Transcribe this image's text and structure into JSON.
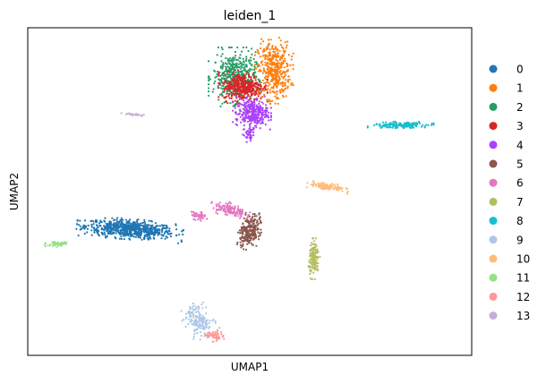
{
  "chart_data": {
    "type": "scatter",
    "title": "leiden_1",
    "xlabel": "UMAP1",
    "ylabel": "UMAP2",
    "xlim": [
      0,
      100
    ],
    "ylim": [
      0,
      100
    ],
    "grid": false,
    "ticks": false,
    "legend_position": "right",
    "series": [
      {
        "name": "0",
        "color": "#1f77b4",
        "clusters": [
          {
            "cx": 23,
            "cy": 38.5,
            "rx": 10,
            "ry": 2.6,
            "n": 700,
            "rot": -6
          }
        ]
      },
      {
        "name": "1",
        "color": "#ff7f0e",
        "clusters": [
          {
            "cx": 55.5,
            "cy": 87,
            "rx": 3.6,
            "ry": 8.5,
            "n": 420,
            "rot": 0
          }
        ]
      },
      {
        "name": "2",
        "color": "#279e68",
        "clusters": [
          {
            "cx": 46.5,
            "cy": 85,
            "rx": 4.8,
            "ry": 7.5,
            "n": 450,
            "rot": 0
          }
        ]
      },
      {
        "name": "3",
        "color": "#d62728",
        "clusters": [
          {
            "cx": 48.5,
            "cy": 82,
            "rx": 4.6,
            "ry": 4.2,
            "n": 380,
            "rot": 0
          }
        ]
      },
      {
        "name": "4",
        "color": "#aa40fc",
        "clusters": [
          {
            "cx": 50.5,
            "cy": 74,
            "rx": 3.6,
            "ry": 4.2,
            "n": 300,
            "rot": 0
          },
          {
            "cx": 49.8,
            "cy": 67.5,
            "rx": 1.2,
            "ry": 2.2,
            "n": 40,
            "rot": 0
          }
        ]
      },
      {
        "name": "5",
        "color": "#8c564b",
        "clusters": [
          {
            "cx": 50,
            "cy": 38,
            "rx": 2.2,
            "ry": 4.8,
            "n": 260,
            "rot": -15
          }
        ]
      },
      {
        "name": "6",
        "color": "#e377c2",
        "clusters": [
          {
            "cx": 45.5,
            "cy": 44.5,
            "rx": 3.8,
            "ry": 1.8,
            "n": 130,
            "rot": -20
          },
          {
            "cx": 38.5,
            "cy": 42.5,
            "rx": 1.6,
            "ry": 1.2,
            "n": 40,
            "rot": 0
          }
        ]
      },
      {
        "name": "7",
        "color": "#b5bd61",
        "clusters": [
          {
            "cx": 64.5,
            "cy": 29.5,
            "rx": 1.1,
            "ry": 5.2,
            "n": 150,
            "rot": 0
          }
        ]
      },
      {
        "name": "8",
        "color": "#17becf",
        "clusters": [
          {
            "cx": 84,
            "cy": 70.3,
            "rx": 6.2,
            "ry": 0.9,
            "n": 170,
            "rot": 2
          }
        ]
      },
      {
        "name": "9",
        "color": "#aec7e8",
        "clusters": [
          {
            "cx": 38.5,
            "cy": 10.5,
            "rx": 2.8,
            "ry": 4.5,
            "n": 170,
            "rot": 25
          }
        ]
      },
      {
        "name": "10",
        "color": "#ffbb78",
        "clusters": [
          {
            "cx": 67.5,
            "cy": 51.5,
            "rx": 4.0,
            "ry": 1.0,
            "n": 110,
            "rot": -12
          }
        ]
      },
      {
        "name": "11",
        "color": "#98df8a",
        "clusters": [
          {
            "cx": 7,
            "cy": 34,
            "rx": 2.6,
            "ry": 0.7,
            "n": 60,
            "rot": 6
          }
        ]
      },
      {
        "name": "12",
        "color": "#ff9896",
        "clusters": [
          {
            "cx": 42,
            "cy": 6,
            "rx": 2.0,
            "ry": 1.5,
            "n": 60,
            "rot": -20
          }
        ]
      },
      {
        "name": "13",
        "color": "#c5b0d5",
        "clusters": [
          {
            "cx": 24,
            "cy": 73.5,
            "rx": 2.6,
            "ry": 0.4,
            "n": 30,
            "rot": -4
          }
        ]
      }
    ]
  }
}
